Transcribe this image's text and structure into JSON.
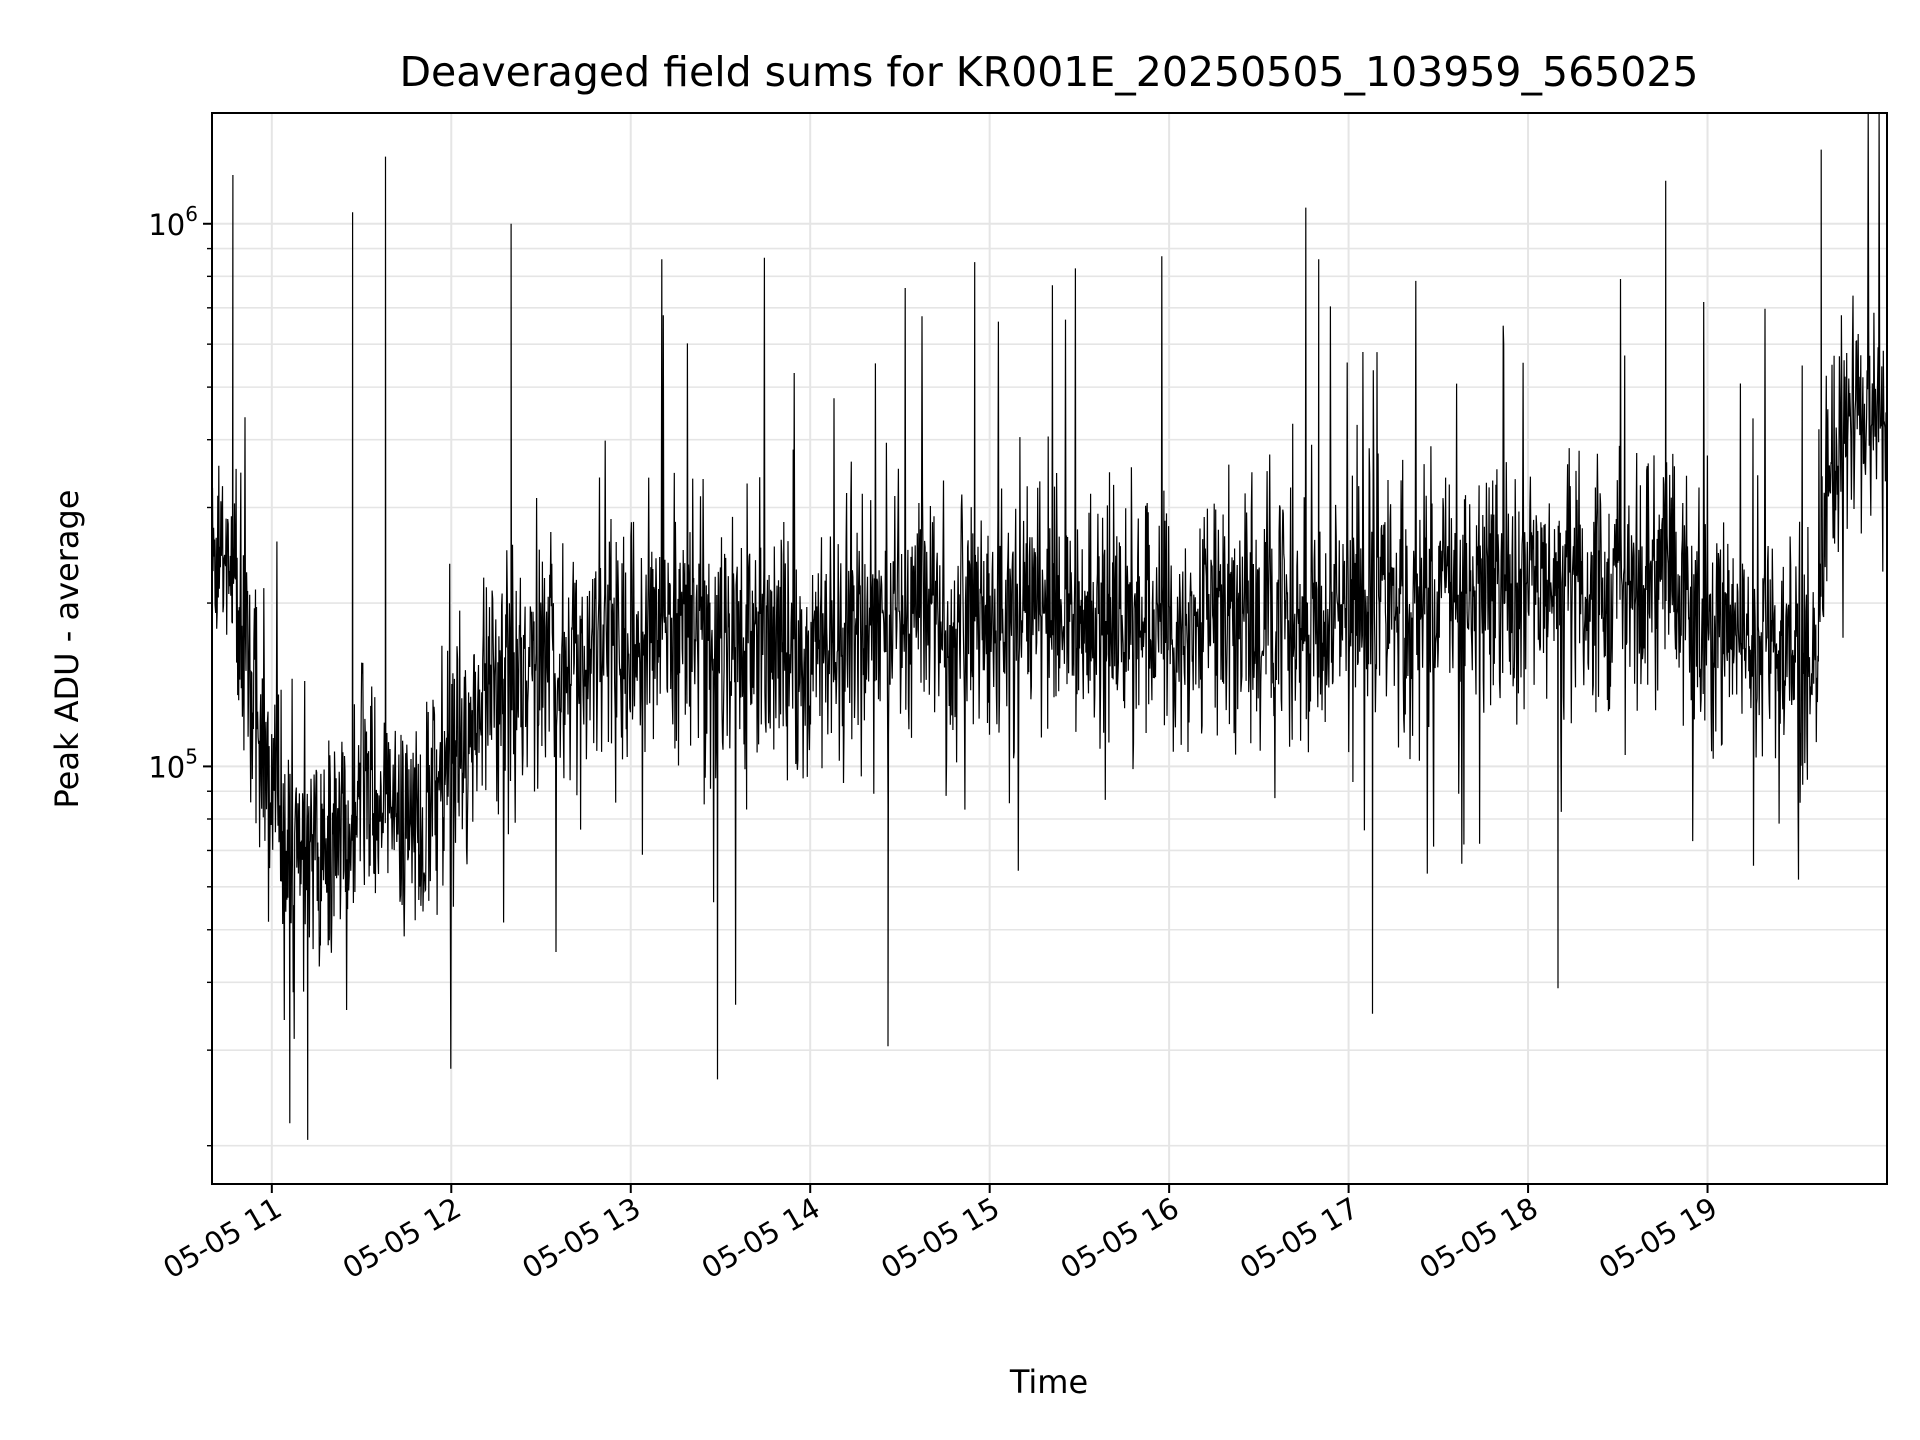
{
  "chart_data": {
    "type": "line",
    "title": "Deaveraged field sums for KR001E_20250505_103959_565025",
    "xlabel": "Time",
    "ylabel": "Peak ADU - average",
    "y_scale": "log",
    "ylim": [
      17000,
      1600000
    ],
    "xlim": [
      "2025-05-05 10:40",
      "2025-05-05 20:00"
    ],
    "x_tick_labels": [
      "05-05 11",
      "05-05 12",
      "05-05 13",
      "05-05 14",
      "05-05 15",
      "05-05 16",
      "05-05 17",
      "05-05 18",
      "05-05 19"
    ],
    "x_tick_times": [
      "2025-05-05 11:00",
      "2025-05-05 12:00",
      "2025-05-05 13:00",
      "2025-05-05 14:00",
      "2025-05-05 15:00",
      "2025-05-05 16:00",
      "2025-05-05 17:00",
      "2025-05-05 18:00",
      "2025-05-05 19:00"
    ],
    "y_major_ticks": [
      {
        "value": 100000,
        "base": "10",
        "exp": "5"
      },
      {
        "value": 1000000,
        "base": "10",
        "exp": "6"
      }
    ],
    "grid": true,
    "line_color": "#000000",
    "grid_color": "#e5e5e5",
    "series": [
      {
        "x": [
          "2025-05-05 10:40",
          "2025-05-05 10:50",
          "2025-05-05 11:00",
          "2025-05-05 11:10",
          "2025-05-05 11:20",
          "2025-05-05 11:30",
          "2025-05-05 11:40",
          "2025-05-05 11:50",
          "2025-05-05 12:00",
          "2025-05-05 12:15",
          "2025-05-05 12:30",
          "2025-05-05 12:45",
          "2025-05-05 13:00",
          "2025-05-05 13:15",
          "2025-05-05 13:30",
          "2025-05-05 13:45",
          "2025-05-05 14:00",
          "2025-05-05 14:15",
          "2025-05-05 14:30",
          "2025-05-05 14:45",
          "2025-05-05 15:00",
          "2025-05-05 15:15",
          "2025-05-05 15:30",
          "2025-05-05 15:45",
          "2025-05-05 16:00",
          "2025-05-05 16:15",
          "2025-05-05 16:30",
          "2025-05-05 16:45",
          "2025-05-05 17:00",
          "2025-05-05 17:15",
          "2025-05-05 17:30",
          "2025-05-05 17:45",
          "2025-05-05 18:00",
          "2025-05-05 18:15",
          "2025-05-05 18:30",
          "2025-05-05 18:45",
          "2025-05-05 19:00",
          "2025-05-05 19:15",
          "2025-05-05 19:30",
          "2025-05-05 19:37",
          "2025-05-05 19:40",
          "2025-05-05 19:50",
          "2025-05-05 20:00"
        ],
        "y": [
          270000,
          190000,
          85000,
          65000,
          72000,
          90000,
          85000,
          80000,
          95000,
          150000,
          160000,
          150000,
          170000,
          180000,
          160000,
          170000,
          150000,
          180000,
          190000,
          200000,
          185000,
          200000,
          190000,
          200000,
          180000,
          200000,
          190000,
          185000,
          190000,
          200000,
          210000,
          205000,
          220000,
          210000,
          220000,
          230000,
          190000,
          170000,
          160000,
          150000,
          330000,
          430000,
          450000
        ],
        "spike_high": [
          {
            "x": "2025-05-05 10:47",
            "y": 1230000
          },
          {
            "x": "2025-05-05 11:27",
            "y": 1050000
          },
          {
            "x": "2025-05-05 11:38",
            "y": 1330000
          },
          {
            "x": "2025-05-05 12:20",
            "y": 1000000
          },
          {
            "x": "2025-05-05 14:55",
            "y": 850000
          },
          {
            "x": "2025-05-05 16:50",
            "y": 860000
          },
          {
            "x": "2025-05-05 18:46",
            "y": 1200000
          },
          {
            "x": "2025-05-05 19:38",
            "y": 1370000
          }
        ],
        "spike_low": [
          {
            "x": "2025-05-05 11:06",
            "y": 22000
          },
          {
            "x": "2025-05-05 11:12",
            "y": 20500
          },
          {
            "x": "2025-05-05 13:29",
            "y": 26500
          },
          {
            "x": "2025-05-05 14:26",
            "y": 30500
          },
          {
            "x": "2025-05-05 17:08",
            "y": 35000
          },
          {
            "x": "2025-05-05 18:10",
            "y": 39000
          }
        ]
      }
    ]
  }
}
